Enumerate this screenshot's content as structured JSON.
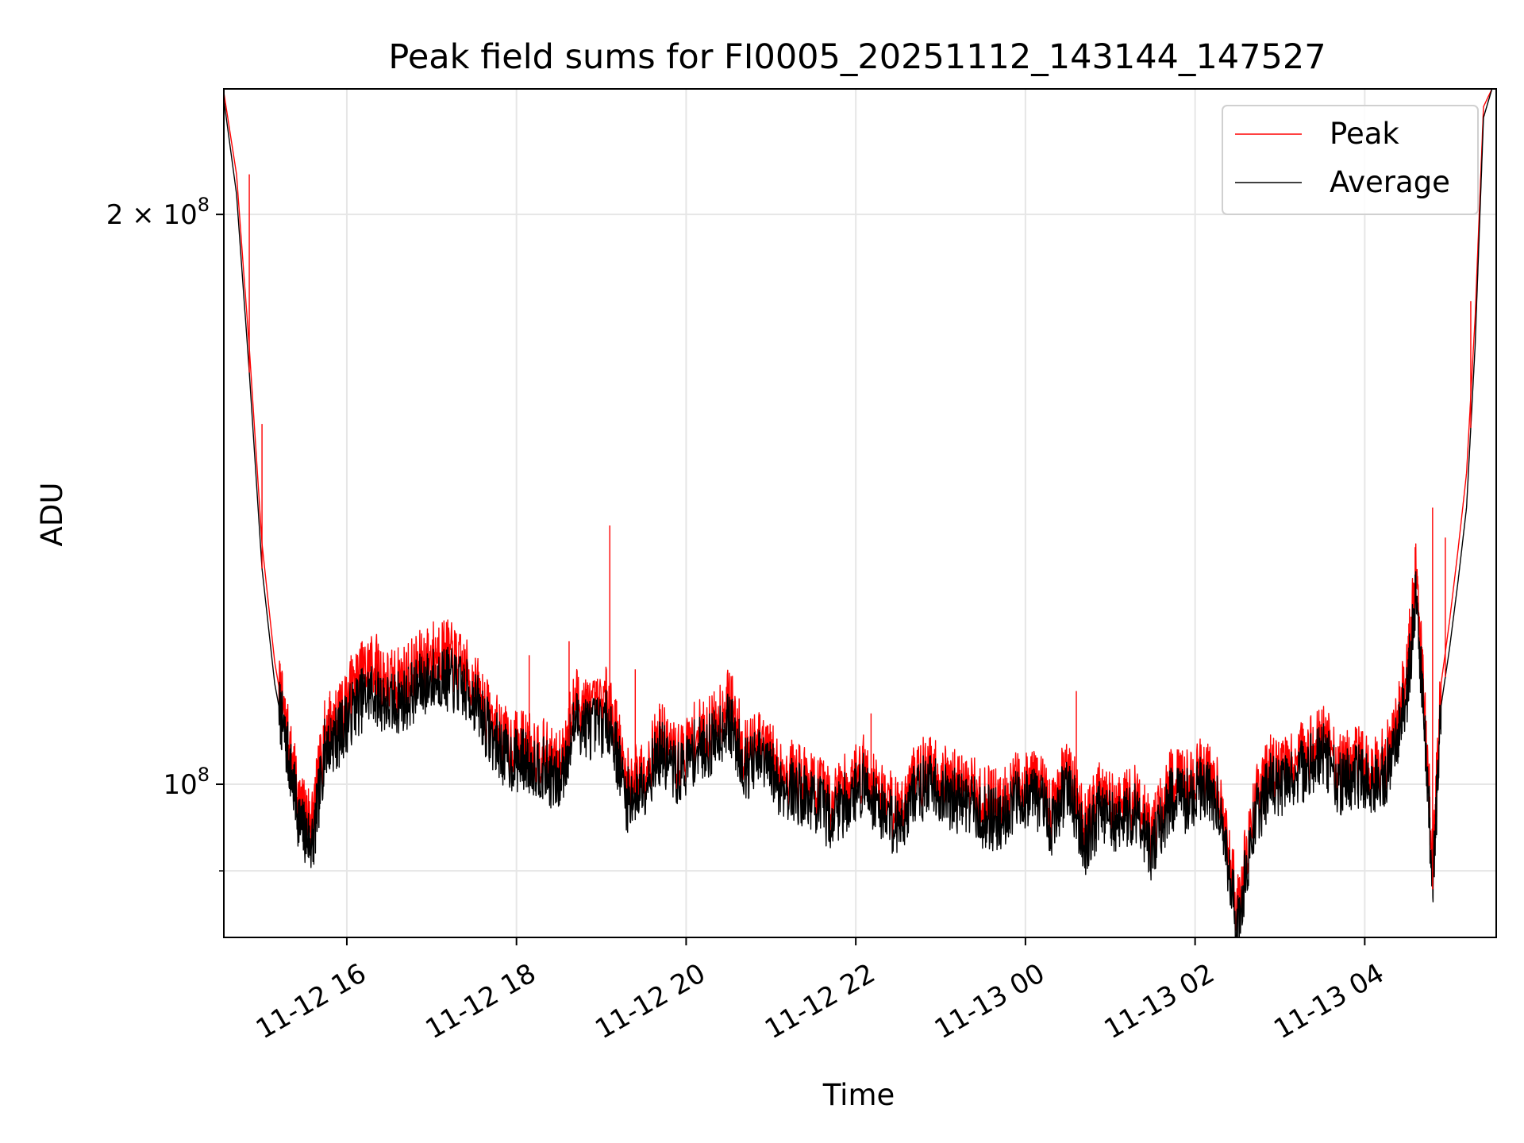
{
  "chart_data": {
    "type": "line",
    "title": "Peak field sums for FI0005_20251112_143144_147527",
    "xlabel": "Time",
    "ylabel": "ADU",
    "yscale": "log",
    "ylim": [
      83000000,
      233000000
    ],
    "xlim_hours": [
      14.55,
      5.55
    ],
    "grid": true,
    "x_ticks": [
      {
        "label": "11-12 16",
        "hour": 16
      },
      {
        "label": "11-12 18",
        "hour": 18
      },
      {
        "label": "11-12 20",
        "hour": 20
      },
      {
        "label": "11-12 22",
        "hour": 22
      },
      {
        "label": "11-13 00",
        "hour": 24
      },
      {
        "label": "11-13 02",
        "hour": 26
      },
      {
        "label": "11-13 04",
        "hour": 28
      }
    ],
    "y_ticks": [
      {
        "value": 200000000,
        "label_base": "2 × 10",
        "label_exp": "8"
      },
      {
        "value": 100000000,
        "label_base": "10",
        "label_exp": "8"
      }
    ],
    "y_minor_ticks": [
      90000000
    ],
    "legend": {
      "position": "top-right",
      "entries": [
        "Peak",
        "Average"
      ]
    },
    "series": [
      {
        "name": "Average",
        "color": "#000000",
        "x_hours": [
          14.55,
          14.7,
          14.85,
          15.0,
          15.15,
          15.3,
          15.45,
          15.6,
          15.75,
          15.9,
          16.1,
          16.3,
          16.5,
          16.7,
          16.9,
          17.1,
          17.3,
          17.5,
          17.7,
          17.9,
          18.1,
          18.3,
          18.5,
          18.7,
          18.9,
          19.1,
          19.3,
          19.5,
          19.7,
          19.9,
          20.1,
          20.3,
          20.5,
          20.7,
          20.9,
          21.1,
          21.3,
          21.5,
          21.7,
          21.9,
          22.1,
          22.3,
          22.5,
          22.7,
          22.9,
          23.1,
          23.3,
          23.5,
          23.7,
          23.9,
          24.1,
          24.3,
          24.5,
          24.7,
          24.9,
          25.1,
          25.3,
          25.5,
          25.7,
          25.9,
          26.1,
          26.3,
          26.5,
          26.7,
          26.9,
          27.1,
          27.3,
          27.5,
          27.7,
          27.9,
          28.1,
          28.3,
          28.5,
          28.6,
          28.7,
          28.8,
          28.9,
          29.0,
          29.1,
          29.2,
          29.3,
          29.4,
          29.5
        ],
        "values": [
          230000000,
          205000000,
          165000000,
          130000000,
          113000000,
          104000000,
          95000000,
          93000000,
          105000000,
          106000000,
          110000000,
          112000000,
          110000000,
          111000000,
          113000000,
          114000000,
          113000000,
          111000000,
          106000000,
          103000000,
          103000000,
          102000000,
          100000000,
          108000000,
          107000000,
          108000000,
          98000000,
          100000000,
          104000000,
          101000000,
          104000000,
          105000000,
          108000000,
          102000000,
          103000000,
          100000000,
          99000000,
          98000000,
          96000000,
          98000000,
          100000000,
          97000000,
          95000000,
          99000000,
          100000000,
          98000000,
          98000000,
          96000000,
          96000000,
          98000000,
          99000000,
          95000000,
          100000000,
          93000000,
          97000000,
          95000000,
          97000000,
          92000000,
          98000000,
          98000000,
          100000000,
          97000000,
          84000000,
          96000000,
          100000000,
          100000000,
          102000000,
          104000000,
          100000000,
          101000000,
          100000000,
          102000000,
          112000000,
          125000000,
          109000000,
          88000000,
          110000000,
          118000000,
          128000000,
          140000000,
          170000000,
          225000000,
          233000000
        ]
      },
      {
        "name": "Peak",
        "color": "#ff0000",
        "x_hours": [
          14.55,
          14.7,
          14.85,
          15.0,
          15.15,
          15.3,
          15.45,
          15.6,
          15.75,
          15.9,
          16.1,
          16.3,
          16.5,
          16.7,
          16.9,
          17.1,
          17.3,
          17.5,
          17.7,
          17.9,
          18.1,
          18.3,
          18.5,
          18.7,
          18.9,
          19.1,
          19.3,
          19.5,
          19.7,
          19.9,
          20.1,
          20.3,
          20.5,
          20.7,
          20.9,
          21.1,
          21.3,
          21.5,
          21.7,
          21.9,
          22.1,
          22.3,
          22.5,
          22.7,
          22.9,
          23.1,
          23.3,
          23.5,
          23.7,
          23.9,
          24.1,
          24.3,
          24.5,
          24.7,
          24.9,
          25.1,
          25.3,
          25.5,
          25.7,
          25.9,
          26.1,
          26.3,
          26.5,
          26.7,
          26.9,
          27.1,
          27.3,
          27.5,
          27.7,
          27.9,
          28.1,
          28.3,
          28.5,
          28.6,
          28.7,
          28.8,
          28.9,
          29.0,
          29.1,
          29.2,
          29.3,
          29.4,
          29.5
        ],
        "values": [
          232000000,
          210000000,
          170000000,
          134000000,
          116000000,
          106000000,
          97000000,
          96000000,
          107000000,
          108000000,
          113000000,
          116000000,
          113000000,
          114000000,
          116000000,
          118000000,
          116000000,
          113000000,
          108000000,
          105000000,
          105000000,
          104000000,
          102000000,
          111000000,
          109000000,
          111000000,
          100000000,
          102000000,
          106000000,
          103000000,
          106000000,
          107000000,
          111000000,
          104000000,
          105000000,
          102000000,
          101000000,
          100000000,
          98000000,
          100000000,
          102000000,
          99000000,
          97000000,
          101000000,
          102000000,
          100000000,
          100000000,
          98000000,
          98000000,
          100000000,
          101000000,
          97000000,
          102000000,
          95000000,
          99000000,
          97000000,
          99000000,
          94000000,
          100000000,
          100000000,
          102000000,
          99000000,
          86000000,
          98000000,
          102000000,
          102000000,
          104000000,
          106000000,
          102000000,
          103000000,
          102000000,
          104000000,
          115000000,
          129000000,
          112000000,
          90000000,
          113000000,
          122000000,
          133000000,
          146000000,
          176000000,
          228000000,
          233000000
        ]
      }
    ],
    "peak_spikes": [
      {
        "hour": 14.85,
        "value": 210000000
      },
      {
        "hour": 15.0,
        "value": 155000000
      },
      {
        "hour": 15.8,
        "value": 112000000
      },
      {
        "hour": 16.05,
        "value": 117000000
      },
      {
        "hour": 16.35,
        "value": 116000000
      },
      {
        "hour": 16.72,
        "value": 115000000
      },
      {
        "hour": 17.05,
        "value": 118000000
      },
      {
        "hour": 17.4,
        "value": 116000000
      },
      {
        "hour": 18.15,
        "value": 117000000
      },
      {
        "hour": 18.62,
        "value": 119000000
      },
      {
        "hour": 19.1,
        "value": 137000000
      },
      {
        "hour": 19.4,
        "value": 115000000
      },
      {
        "hour": 22.18,
        "value": 109000000
      },
      {
        "hour": 24.6,
        "value": 112000000
      },
      {
        "hour": 28.8,
        "value": 140000000
      },
      {
        "hour": 28.95,
        "value": 135000000
      },
      {
        "hour": 29.25,
        "value": 180000000
      }
    ]
  }
}
